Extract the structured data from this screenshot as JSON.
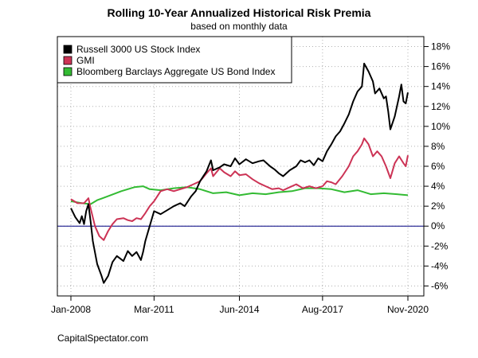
{
  "chart_data": {
    "type": "line",
    "title": "Rolling 10-Year Annualized Historical Risk Premia",
    "subtitle": "based on monthly data",
    "x_tick_labels": [
      "Jan-2008",
      "Mar-2011",
      "Jun-2014",
      "Aug-2017",
      "Nov-2020"
    ],
    "x_tick_dates": [
      "2008-01",
      "2011-03",
      "2014-06",
      "2017-08",
      "2020-11"
    ],
    "xlim": [
      "2008-01",
      "2020-11"
    ],
    "y_tick_labels": [
      "-6%",
      "-4%",
      "-2%",
      "0%",
      "2%",
      "4%",
      "6%",
      "8%",
      "10%",
      "12%",
      "14%",
      "16%",
      "18%"
    ],
    "y_ticks": [
      -6,
      -4,
      -2,
      0,
      2,
      4,
      6,
      8,
      10,
      12,
      14,
      16,
      18
    ],
    "ylim": [
      -7,
      19
    ],
    "y_axis_side": "right",
    "grid": true,
    "reference_line": {
      "y": 0,
      "color": "#000080"
    },
    "legend_position": "top-left",
    "series": [
      {
        "name": "Russell 3000 US Stock Index",
        "color": "#000000",
        "points": [
          [
            "2008-01",
            1.8
          ],
          [
            "2008-03",
            0.9
          ],
          [
            "2008-05",
            0.3
          ],
          [
            "2008-06",
            1.0
          ],
          [
            "2008-07",
            0.2
          ],
          [
            "2008-08",
            1.5
          ],
          [
            "2008-09",
            2.2
          ],
          [
            "2008-10",
            0.5
          ],
          [
            "2008-11",
            -1.5
          ],
          [
            "2009-01",
            -3.8
          ],
          [
            "2009-03",
            -5.0
          ],
          [
            "2009-04",
            -5.7
          ],
          [
            "2009-06",
            -5.0
          ],
          [
            "2009-08",
            -3.6
          ],
          [
            "2009-10",
            -3.0
          ],
          [
            "2010-01",
            -3.5
          ],
          [
            "2010-03",
            -2.5
          ],
          [
            "2010-05",
            -3.0
          ],
          [
            "2010-07",
            -2.6
          ],
          [
            "2010-09",
            -3.4
          ],
          [
            "2010-10",
            -2.6
          ],
          [
            "2010-11",
            -1.5
          ],
          [
            "2011-01",
            0.0
          ],
          [
            "2011-03",
            1.5
          ],
          [
            "2011-06",
            1.2
          ],
          [
            "2011-09",
            1.6
          ],
          [
            "2011-12",
            2.0
          ],
          [
            "2012-03",
            2.3
          ],
          [
            "2012-05",
            2.0
          ],
          [
            "2012-08",
            3.0
          ],
          [
            "2012-10",
            3.5
          ],
          [
            "2012-12",
            4.5
          ],
          [
            "2013-03",
            5.5
          ],
          [
            "2013-05",
            6.6
          ],
          [
            "2013-06",
            5.6
          ],
          [
            "2013-09",
            5.9
          ],
          [
            "2013-11",
            6.2
          ],
          [
            "2014-02",
            6.0
          ],
          [
            "2014-04",
            6.8
          ],
          [
            "2014-06",
            6.2
          ],
          [
            "2014-09",
            6.7
          ],
          [
            "2014-12",
            6.3
          ],
          [
            "2015-03",
            6.5
          ],
          [
            "2015-05",
            6.6
          ],
          [
            "2015-08",
            6.0
          ],
          [
            "2015-10",
            5.7
          ],
          [
            "2015-12",
            5.3
          ],
          [
            "2016-02",
            5.0
          ],
          [
            "2016-05",
            5.6
          ],
          [
            "2016-08",
            6.0
          ],
          [
            "2016-10",
            6.6
          ],
          [
            "2016-12",
            6.4
          ],
          [
            "2017-02",
            6.6
          ],
          [
            "2017-04",
            6.1
          ],
          [
            "2017-06",
            6.8
          ],
          [
            "2017-08",
            6.5
          ],
          [
            "2017-10",
            7.5
          ],
          [
            "2017-12",
            8.2
          ],
          [
            "2018-02",
            9.0
          ],
          [
            "2018-04",
            9.5
          ],
          [
            "2018-06",
            10.3
          ],
          [
            "2018-08",
            11.2
          ],
          [
            "2018-10",
            12.5
          ],
          [
            "2018-12",
            13.5
          ],
          [
            "2019-02",
            14.0
          ],
          [
            "2019-03",
            16.3
          ],
          [
            "2019-05",
            15.5
          ],
          [
            "2019-07",
            14.5
          ],
          [
            "2019-08",
            13.3
          ],
          [
            "2019-10",
            13.8
          ],
          [
            "2019-12",
            12.8
          ],
          [
            "2020-01",
            13.0
          ],
          [
            "2020-02",
            11.5
          ],
          [
            "2020-03",
            9.7
          ],
          [
            "2020-05",
            11.0
          ],
          [
            "2020-07",
            13.0
          ],
          [
            "2020-08",
            14.2
          ],
          [
            "2020-09",
            12.5
          ],
          [
            "2020-10",
            12.3
          ],
          [
            "2020-11",
            13.4
          ]
        ]
      },
      {
        "name": "GMI",
        "color": "#cc3355",
        "points": [
          [
            "2008-01",
            2.7
          ],
          [
            "2008-04",
            2.3
          ],
          [
            "2008-07",
            2.3
          ],
          [
            "2008-09",
            2.8
          ],
          [
            "2008-10",
            1.8
          ],
          [
            "2008-12",
            0.0
          ],
          [
            "2009-02",
            -1.0
          ],
          [
            "2009-04",
            -1.4
          ],
          [
            "2009-06",
            -0.5
          ],
          [
            "2009-08",
            0.2
          ],
          [
            "2009-10",
            0.7
          ],
          [
            "2010-01",
            0.8
          ],
          [
            "2010-03",
            0.6
          ],
          [
            "2010-05",
            0.5
          ],
          [
            "2010-07",
            0.8
          ],
          [
            "2010-09",
            0.7
          ],
          [
            "2010-11",
            1.3
          ],
          [
            "2011-01",
            2.0
          ],
          [
            "2011-03",
            2.5
          ],
          [
            "2011-06",
            3.5
          ],
          [
            "2011-09",
            3.7
          ],
          [
            "2011-12",
            3.5
          ],
          [
            "2012-03",
            3.7
          ],
          [
            "2012-06",
            3.9
          ],
          [
            "2012-09",
            4.2
          ],
          [
            "2012-12",
            4.5
          ],
          [
            "2013-03",
            5.3
          ],
          [
            "2013-05",
            5.8
          ],
          [
            "2013-06",
            5.0
          ],
          [
            "2013-09",
            5.8
          ],
          [
            "2013-11",
            5.4
          ],
          [
            "2014-02",
            5.0
          ],
          [
            "2014-04",
            5.5
          ],
          [
            "2014-06",
            5.1
          ],
          [
            "2014-09",
            5.2
          ],
          [
            "2014-12",
            4.7
          ],
          [
            "2015-03",
            4.3
          ],
          [
            "2015-06",
            4.0
          ],
          [
            "2015-09",
            3.7
          ],
          [
            "2015-12",
            3.8
          ],
          [
            "2016-02",
            3.6
          ],
          [
            "2016-05",
            3.9
          ],
          [
            "2016-08",
            4.2
          ],
          [
            "2016-11",
            3.8
          ],
          [
            "2017-02",
            4.0
          ],
          [
            "2017-05",
            3.8
          ],
          [
            "2017-08",
            4.0
          ],
          [
            "2017-10",
            4.5
          ],
          [
            "2017-12",
            4.4
          ],
          [
            "2018-02",
            4.2
          ],
          [
            "2018-05",
            5.0
          ],
          [
            "2018-08",
            6.0
          ],
          [
            "2018-10",
            7.0
          ],
          [
            "2018-12",
            7.5
          ],
          [
            "2019-02",
            8.2
          ],
          [
            "2019-03",
            8.8
          ],
          [
            "2019-05",
            8.2
          ],
          [
            "2019-07",
            7.0
          ],
          [
            "2019-09",
            7.5
          ],
          [
            "2019-11",
            7.0
          ],
          [
            "2020-01",
            6.0
          ],
          [
            "2020-03",
            4.8
          ],
          [
            "2020-05",
            6.3
          ],
          [
            "2020-07",
            7.0
          ],
          [
            "2020-09",
            6.3
          ],
          [
            "2020-10",
            6.0
          ],
          [
            "2020-11",
            7.1
          ]
        ]
      },
      {
        "name": "Bloomberg Barclays Aggregate US Bond Index",
        "color": "#33bb33",
        "points": [
          [
            "2008-01",
            2.5
          ],
          [
            "2008-06",
            2.3
          ],
          [
            "2008-10",
            2.2
          ],
          [
            "2009-01",
            2.6
          ],
          [
            "2009-06",
            3.0
          ],
          [
            "2009-12",
            3.5
          ],
          [
            "2010-06",
            3.9
          ],
          [
            "2010-10",
            4.0
          ],
          [
            "2011-01",
            3.7
          ],
          [
            "2011-06",
            3.6
          ],
          [
            "2011-12",
            3.8
          ],
          [
            "2012-06",
            3.9
          ],
          [
            "2012-12",
            3.7
          ],
          [
            "2013-06",
            3.3
          ],
          [
            "2013-12",
            3.4
          ],
          [
            "2014-06",
            3.1
          ],
          [
            "2014-12",
            3.3
          ],
          [
            "2015-06",
            3.2
          ],
          [
            "2015-12",
            3.4
          ],
          [
            "2016-06",
            3.5
          ],
          [
            "2016-12",
            3.8
          ],
          [
            "2017-06",
            3.8
          ],
          [
            "2017-12",
            3.7
          ],
          [
            "2018-06",
            3.4
          ],
          [
            "2018-12",
            3.6
          ],
          [
            "2019-06",
            3.2
          ],
          [
            "2019-12",
            3.3
          ],
          [
            "2020-06",
            3.2
          ],
          [
            "2020-11",
            3.1
          ]
        ]
      }
    ]
  },
  "source_note": "CapitalSpectator.com"
}
